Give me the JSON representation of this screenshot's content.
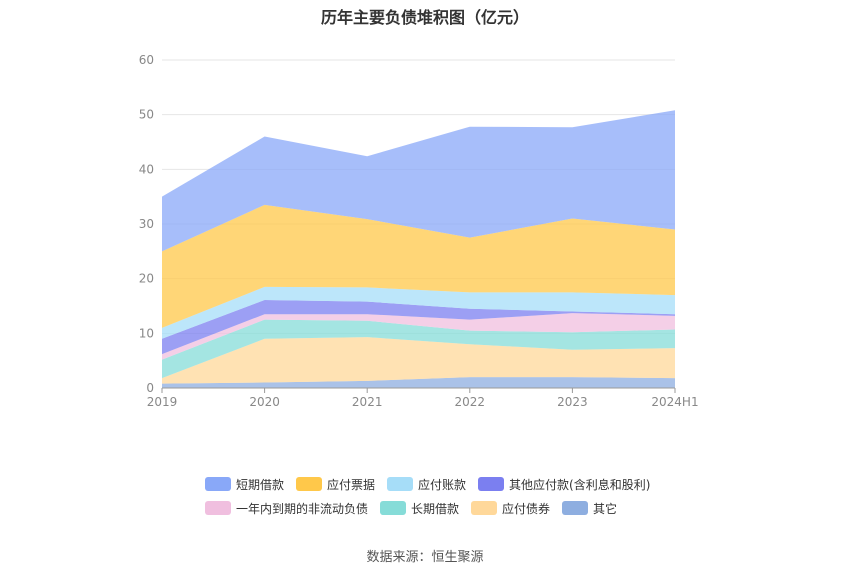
{
  "chart_data": {
    "type": "area",
    "stacked": true,
    "title": "历年主要负债堆积图（亿元）",
    "x": [
      "2019",
      "2020",
      "2021",
      "2022",
      "2023",
      "2024H1"
    ],
    "ylim": [
      0,
      60
    ],
    "yticks": [
      0,
      10,
      20,
      30,
      40,
      50,
      60
    ],
    "grid": true,
    "legend_position": "bottom",
    "series": [
      {
        "name": "其它",
        "color": "#8eaee0",
        "values": [
          0.8,
          1.0,
          1.3,
          2.0,
          2.0,
          1.8
        ]
      },
      {
        "name": "应付债券",
        "color": "#ffd89a",
        "values": [
          1.0,
          8.0,
          8.0,
          6.0,
          5.0,
          5.5
        ]
      },
      {
        "name": "长期借款",
        "color": "#86dcd8",
        "values": [
          3.4,
          3.5,
          3.0,
          2.5,
          3.2,
          3.4
        ]
      },
      {
        "name": "一年内到期的非流动负债",
        "color": "#f0bfdf",
        "values": [
          1.0,
          1.0,
          1.2,
          2.0,
          3.5,
          2.5
        ]
      },
      {
        "name": "其他应付款(含利息和股利)",
        "color": "#7b7ff0",
        "values": [
          2.8,
          2.6,
          2.3,
          2.0,
          0.3,
          0.3
        ]
      },
      {
        "name": "应付账款",
        "color": "#a6ddf8",
        "values": [
          2.0,
          2.4,
          2.6,
          3.0,
          3.5,
          3.5
        ]
      },
      {
        "name": "应付票据",
        "color": "#ffc84a",
        "values": [
          14.0,
          15.0,
          12.5,
          10.0,
          13.5,
          12.0
        ]
      },
      {
        "name": "短期借款",
        "color": "#89a8f8",
        "values": [
          10.0,
          12.5,
          11.5,
          20.3,
          16.7,
          21.8
        ]
      }
    ],
    "legend_rows": [
      [
        "短期借款",
        "应付票据",
        "应付账款",
        "其他应付款(含利息和股利)"
      ],
      [
        "一年内到期的非流动负债",
        "长期借款",
        "应付债券",
        "其它"
      ]
    ]
  },
  "source": "数据来源：恒生聚源"
}
